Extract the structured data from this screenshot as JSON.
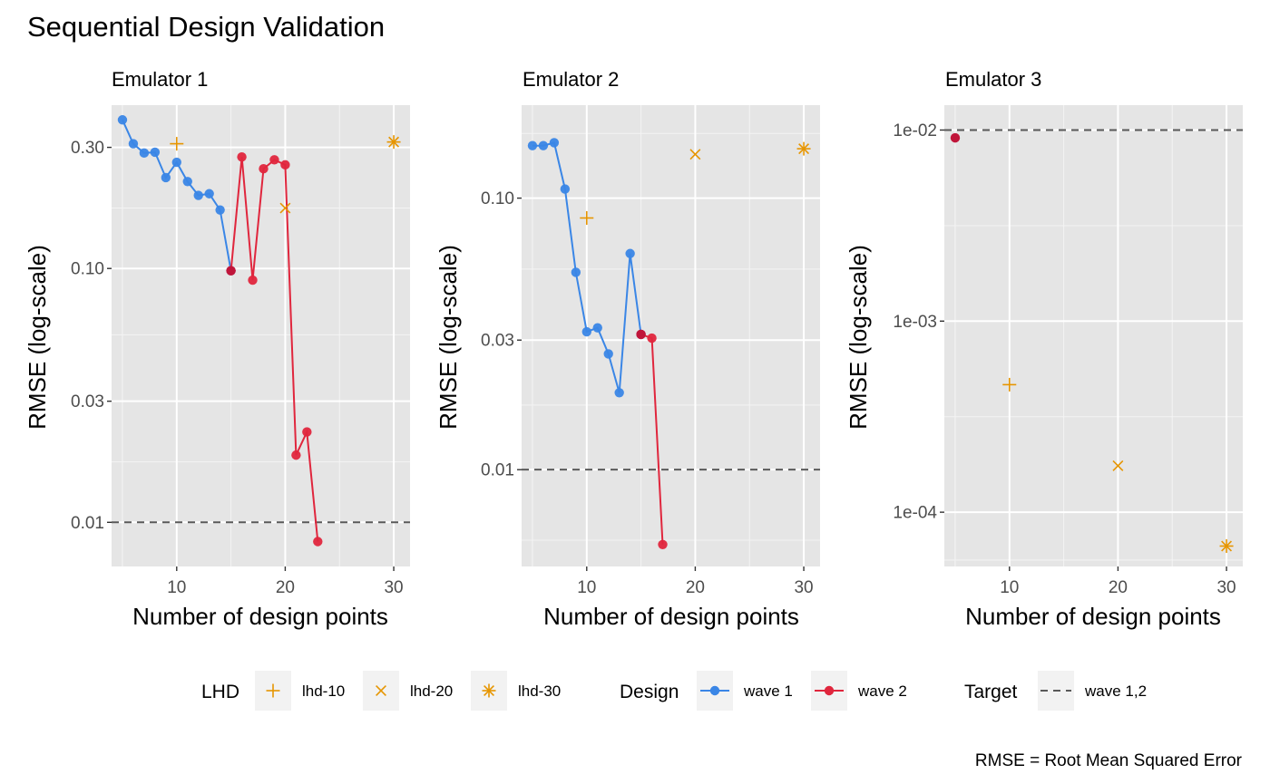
{
  "chart_data": {
    "title": "Sequential Design Validation",
    "caption": "RMSE = Root Mean Squared Error",
    "type": "line",
    "scale_y": "log10",
    "colors": {
      "wave1": "#3a86e6",
      "wave2": "#e0263d",
      "overlap": "#c0153a",
      "lhd": "#e69500",
      "target": "#595959",
      "panel_bg": "#e5e5e5",
      "grid": "#ffffff"
    },
    "panels": [
      {
        "title": "Emulator 1",
        "xlabel": "Number of design points",
        "ylabel": "RMSE (log-scale)",
        "xlim": [
          4,
          31.5
        ],
        "ylim": [
          0.0067,
          0.44
        ],
        "xticks": [
          10,
          20,
          30
        ],
        "xtick_labels": [
          "10",
          "20",
          "30"
        ],
        "yticks": [
          0.01,
          0.03,
          0.1,
          0.3
        ],
        "ytick_labels": [
          "0.01",
          "0.03",
          "0.10",
          "0.30"
        ],
        "yminor": [
          0.0173,
          0.0548,
          0.173
        ],
        "target": 0.01,
        "series": [
          {
            "name": "wave 1",
            "x": [
              5,
              6,
              7,
              8,
              9,
              10,
              11,
              12,
              13,
              14,
              15
            ],
            "y": [
              0.385,
              0.31,
              0.285,
              0.287,
              0.228,
              0.262,
              0.22,
              0.194,
              0.197,
              0.17,
              0.098
            ]
          },
          {
            "name": "wave 2",
            "x": [
              15,
              16,
              17,
              18,
              19,
              20,
              21,
              22,
              23
            ],
            "y": [
              0.098,
              0.275,
              0.09,
              0.247,
              0.268,
              0.256,
              0.0184,
              0.0227,
              0.0084
            ]
          }
        ],
        "overlap": [
          {
            "x": 15,
            "y": 0.098
          }
        ],
        "lhd": [
          {
            "design": "lhd-10",
            "x": 10,
            "y": 0.31
          },
          {
            "design": "lhd-20",
            "x": 20,
            "y": 0.173
          },
          {
            "design": "lhd-30",
            "x": 30,
            "y": 0.315
          }
        ]
      },
      {
        "title": "Emulator 2",
        "xlabel": "Number of design points",
        "ylabel": "RMSE (log-scale)",
        "xlim": [
          4,
          31.5
        ],
        "ylim": [
          0.0044,
          0.22
        ],
        "xticks": [
          10,
          20,
          30
        ],
        "xtick_labels": [
          "10",
          "20",
          "30"
        ],
        "yticks": [
          0.01,
          0.03,
          0.1
        ],
        "ytick_labels": [
          "0.01",
          "0.03",
          "0.10"
        ],
        "yminor": [
          0.0055,
          0.0173,
          0.0548,
          0.173
        ],
        "target": 0.01,
        "series": [
          {
            "name": "wave 1",
            "x": [
              5,
              6,
              7,
              8,
              9,
              10,
              11,
              12,
              13,
              14,
              15
            ],
            "y": [
              0.156,
              0.156,
              0.16,
              0.108,
              0.0533,
              0.0322,
              0.0333,
              0.0267,
              0.0192,
              0.0625,
              0.0315
            ]
          },
          {
            "name": "wave 2",
            "x": [
              15,
              16,
              17
            ],
            "y": [
              0.0315,
              0.0305,
              0.0053
            ]
          }
        ],
        "overlap": [
          {
            "x": 15,
            "y": 0.0315
          }
        ],
        "lhd": [
          {
            "design": "lhd-10",
            "x": 10,
            "y": 0.0845
          },
          {
            "design": "lhd-20",
            "x": 20,
            "y": 0.145
          },
          {
            "design": "lhd-30",
            "x": 30,
            "y": 0.152
          }
        ]
      },
      {
        "title": "Emulator 3",
        "xlabel": "Number of design points",
        "ylabel": "RMSE (log-scale)",
        "xlim": [
          4,
          31.5
        ],
        "ylim": [
          5.2e-05,
          0.0135
        ],
        "xticks": [
          10,
          20,
          30
        ],
        "xtick_labels": [
          "10",
          "20",
          "30"
        ],
        "yticks": [
          0.0001,
          0.001,
          0.01
        ],
        "ytick_labels": [
          "1e-04",
          "1e-03",
          "1e-02"
        ],
        "yminor": [
          5.62e-05,
          0.000316,
          0.00316
        ],
        "target": 0.01,
        "series": [],
        "overlap": [
          {
            "x": 5,
            "y": 0.0091
          }
        ],
        "lhd": [
          {
            "design": "lhd-10",
            "x": 10,
            "y": 0.000465
          },
          {
            "design": "lhd-20",
            "x": 20,
            "y": 0.000175
          },
          {
            "design": "lhd-30",
            "x": 30,
            "y": 6.65e-05
          }
        ]
      }
    ],
    "legend": {
      "position": "bottom",
      "groups": [
        {
          "title": "LHD",
          "keys": [
            {
              "symbol": "plus",
              "label": "lhd-10"
            },
            {
              "symbol": "cross",
              "label": "lhd-20"
            },
            {
              "symbol": "asterisk",
              "label": "lhd-30"
            }
          ]
        },
        {
          "title": "Design",
          "keys": [
            {
              "symbol": "line-point-wave1",
              "label": "wave 1"
            },
            {
              "symbol": "line-point-wave2",
              "label": "wave 2"
            }
          ]
        },
        {
          "title": "Target",
          "keys": [
            {
              "symbol": "dashed",
              "label": "wave 1,2"
            }
          ]
        }
      ]
    }
  }
}
